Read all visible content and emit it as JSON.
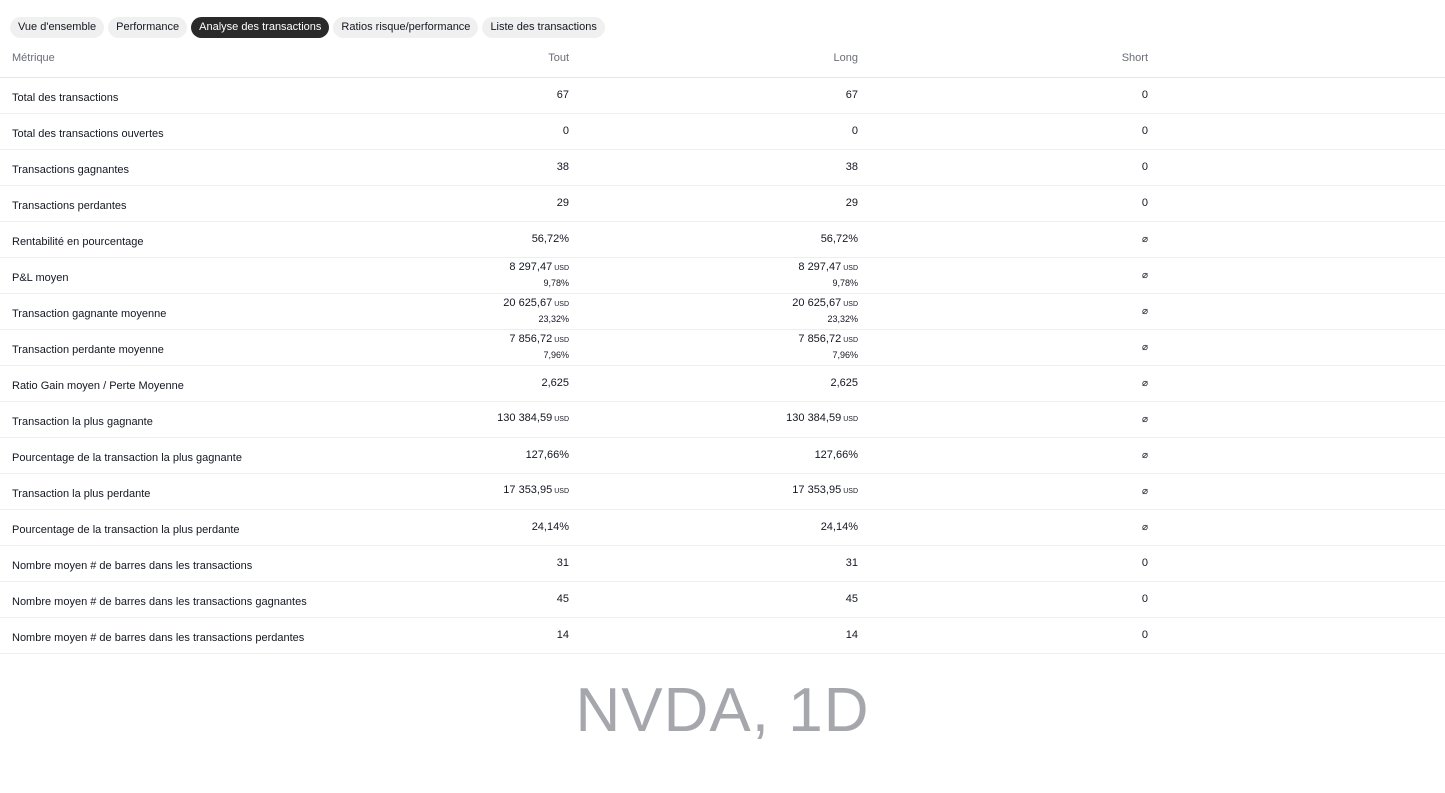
{
  "tabs": [
    {
      "label": "Vue d'ensemble",
      "active": false
    },
    {
      "label": "Performance",
      "active": false
    },
    {
      "label": "Analyse des transactions",
      "active": true
    },
    {
      "label": "Ratios risque/performance",
      "active": false
    },
    {
      "label": "Liste des transactions",
      "active": false
    }
  ],
  "table": {
    "headers": [
      "Métrique",
      "Tout",
      "Long",
      "Short"
    ],
    "rows": [
      {
        "label": "Total des transactions",
        "cells": [
          {
            "value": "67"
          },
          {
            "value": "67"
          },
          {
            "value": "0"
          }
        ]
      },
      {
        "label": "Total des transactions ouvertes",
        "cells": [
          {
            "value": "0"
          },
          {
            "value": "0"
          },
          {
            "value": "0"
          }
        ]
      },
      {
        "label": "Transactions gagnantes",
        "cells": [
          {
            "value": "38"
          },
          {
            "value": "38"
          },
          {
            "value": "0"
          }
        ]
      },
      {
        "label": "Transactions perdantes",
        "cells": [
          {
            "value": "29"
          },
          {
            "value": "29"
          },
          {
            "value": "0"
          }
        ]
      },
      {
        "label": "Rentabilité en pourcentage",
        "cells": [
          {
            "value": "56,72%"
          },
          {
            "value": "56,72%"
          },
          {
            "value": "⌀"
          }
        ]
      },
      {
        "label": "P&L moyen",
        "cells": [
          {
            "value": "8 297,47",
            "unit": "USD",
            "pct": "9,78%"
          },
          {
            "value": "8 297,47",
            "unit": "USD",
            "pct": "9,78%"
          },
          {
            "value": "⌀"
          }
        ]
      },
      {
        "label": "Transaction gagnante moyenne",
        "cells": [
          {
            "value": "20 625,67",
            "unit": "USD",
            "pct": "23,32%"
          },
          {
            "value": "20 625,67",
            "unit": "USD",
            "pct": "23,32%"
          },
          {
            "value": "⌀"
          }
        ]
      },
      {
        "label": "Transaction perdante moyenne",
        "cells": [
          {
            "value": "7 856,72",
            "unit": "USD",
            "pct": "7,96%"
          },
          {
            "value": "7 856,72",
            "unit": "USD",
            "pct": "7,96%"
          },
          {
            "value": "⌀"
          }
        ]
      },
      {
        "label": "Ratio Gain moyen / Perte Moyenne",
        "cells": [
          {
            "value": "2,625"
          },
          {
            "value": "2,625"
          },
          {
            "value": "⌀"
          }
        ]
      },
      {
        "label": "Transaction la plus gagnante",
        "cells": [
          {
            "value": "130 384,59",
            "unit": "USD"
          },
          {
            "value": "130 384,59",
            "unit": "USD"
          },
          {
            "value": "⌀"
          }
        ]
      },
      {
        "label": "Pourcentage de la transaction la plus gagnante",
        "cells": [
          {
            "value": "127,66%"
          },
          {
            "value": "127,66%"
          },
          {
            "value": "⌀"
          }
        ]
      },
      {
        "label": "Transaction la plus perdante",
        "cells": [
          {
            "value": "17 353,95",
            "unit": "USD"
          },
          {
            "value": "17 353,95",
            "unit": "USD"
          },
          {
            "value": "⌀"
          }
        ]
      },
      {
        "label": "Pourcentage de la transaction la plus perdante",
        "cells": [
          {
            "value": "24,14%"
          },
          {
            "value": "24,14%"
          },
          {
            "value": "⌀"
          }
        ]
      },
      {
        "label": "Nombre moyen # de barres dans les transactions",
        "cells": [
          {
            "value": "31"
          },
          {
            "value": "31"
          },
          {
            "value": "0"
          }
        ]
      },
      {
        "label": "Nombre moyen # de barres dans les transactions gagnantes",
        "cells": [
          {
            "value": "45"
          },
          {
            "value": "45"
          },
          {
            "value": "0"
          }
        ]
      },
      {
        "label": "Nombre moyen # de barres dans les transactions perdantes",
        "cells": [
          {
            "value": "14"
          },
          {
            "value": "14"
          },
          {
            "value": "0"
          }
        ]
      }
    ]
  },
  "watermark": "NVDA, 1D"
}
